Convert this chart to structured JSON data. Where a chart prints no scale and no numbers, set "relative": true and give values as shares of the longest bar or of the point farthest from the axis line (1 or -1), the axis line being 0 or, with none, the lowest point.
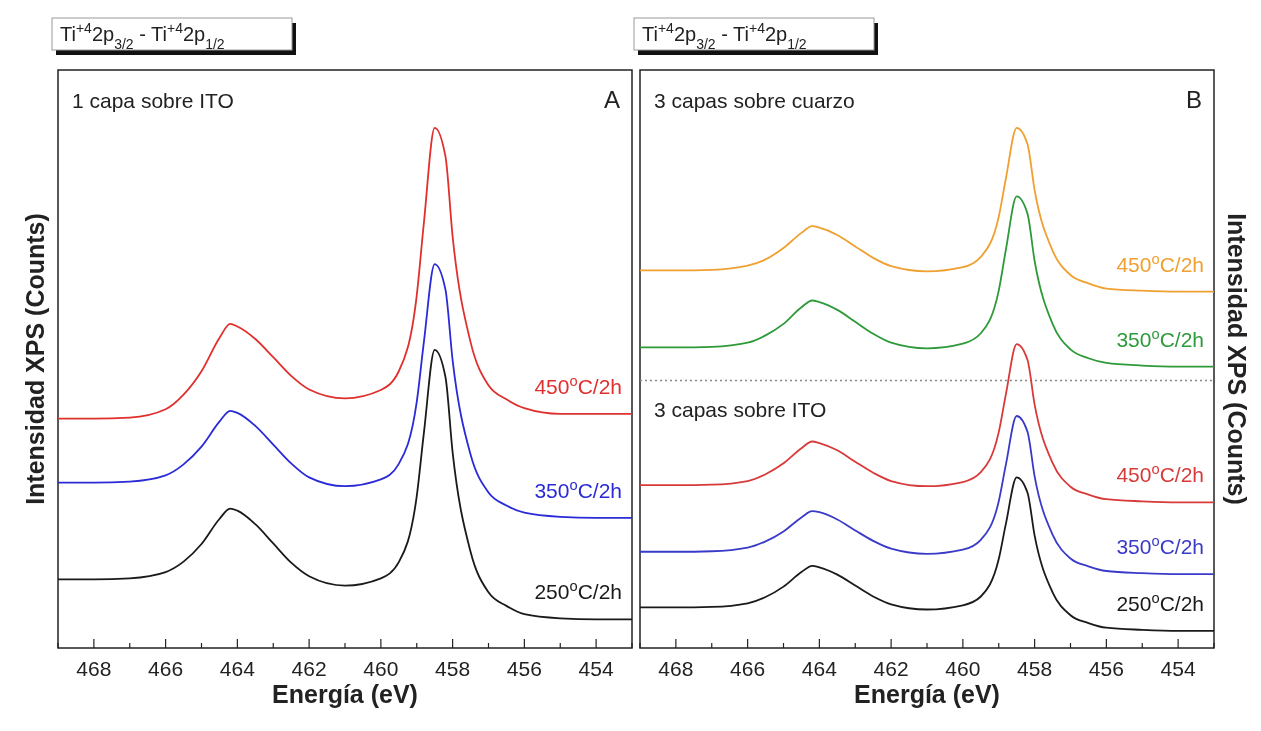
{
  "chart_data": [
    {
      "type": "line",
      "title": "Ti$^{+4}$2p$_{3/2}$ - Ti$^{+4}$2p$_{1/2}$",
      "xlabel": "Energía (eV)",
      "ylabel": "Intensidad XPS (Counts)",
      "relative": true,
      "x": [
        469,
        468,
        467,
        466,
        465.5,
        465,
        464.5,
        464.2,
        464,
        463.5,
        463,
        462.5,
        462,
        461,
        460,
        459.5,
        459,
        458.8,
        458.5,
        458.2,
        458,
        457.5,
        457,
        456.5,
        456,
        455,
        454,
        453
      ],
      "xlim": [
        469,
        453
      ],
      "xticks": [
        {
          "value": 469,
          "label": null
        },
        468,
        {
          "value": 467,
          "label": null
        },
        466,
        {
          "value": 465,
          "label": null
        },
        464,
        {
          "value": 463,
          "label": null
        },
        462,
        {
          "value": 461,
          "label": null
        },
        460,
        {
          "value": 459,
          "label": null
        },
        458,
        {
          "value": 457,
          "label": null
        },
        456,
        {
          "value": 455,
          "label": null
        },
        454,
        {
          "value": 453,
          "label": null
        }
      ],
      "annotations": [
        "1 capa sobre ITO",
        "A"
      ],
      "series": [
        {
          "name": "450$^{o}$C/2h",
          "color": "#e0302e",
          "values": [
            0.441,
            0.441,
            0.443,
            0.459,
            0.487,
            0.532,
            0.596,
            0.623,
            0.618,
            0.594,
            0.559,
            0.523,
            0.497,
            0.48,
            0.496,
            0.532,
            0.678,
            0.818,
            1,
            0.945,
            0.791,
            0.588,
            0.505,
            0.478,
            0.461,
            0.45,
            0.45,
            0.45
          ]
        },
        {
          "name": "350$^{o}$C/2h",
          "color": "#2a2ad8",
          "values": [
            0.318,
            0.318,
            0.32,
            0.332,
            0.353,
            0.387,
            0.435,
            0.456,
            0.452,
            0.427,
            0.391,
            0.355,
            0.328,
            0.311,
            0.324,
            0.354,
            0.473,
            0.589,
            0.738,
            0.689,
            0.553,
            0.372,
            0.299,
            0.274,
            0.26,
            0.252,
            0.25,
            0.25
          ]
        },
        {
          "name": "250$^{o}$C/2h",
          "color": "#1a1a1a",
          "values": [
            0.132,
            0.132,
            0.134,
            0.146,
            0.166,
            0.2,
            0.248,
            0.268,
            0.264,
            0.238,
            0.201,
            0.164,
            0.138,
            0.12,
            0.134,
            0.165,
            0.292,
            0.414,
            0.573,
            0.521,
            0.376,
            0.185,
            0.107,
            0.081,
            0.065,
            0.057,
            0.055,
            0.055
          ]
        }
      ]
    },
    {
      "type": "line",
      "title": "Ti$^{+4}$2p$_{3/2}$ - Ti$^{+4}$2p$_{1/2}$",
      "xlabel": "Energía (eV)",
      "ylabel": "Intensidad XPS (Counts)",
      "relative": true,
      "x": [
        469,
        468,
        467,
        466,
        465.5,
        465,
        464.5,
        464.2,
        464,
        463.5,
        463,
        462.5,
        462,
        461,
        460,
        459.5,
        459,
        458.8,
        458.5,
        458.2,
        458,
        457.5,
        457,
        456.5,
        456,
        455,
        454,
        453
      ],
      "xlim": [
        469,
        453
      ],
      "xticks": [
        {
          "value": 469,
          "label": null
        },
        468,
        {
          "value": 467,
          "label": null
        },
        466,
        {
          "value": 465,
          "label": null
        },
        464,
        {
          "value": 463,
          "label": null
        },
        462,
        {
          "value": 461,
          "label": null
        },
        460,
        {
          "value": 459,
          "label": null
        },
        458,
        {
          "value": 457,
          "label": null
        },
        456,
        {
          "value": 455,
          "label": null
        },
        454,
        {
          "value": 453,
          "label": null
        }
      ],
      "annotations": [
        "3 capas sobre cuarzo",
        "B",
        "3 capas sobre ITO"
      ],
      "ref_lines": [
        {
          "axis": "y",
          "value": 0.514,
          "color": "#888888",
          "line_style": "dotted"
        }
      ],
      "series": [
        {
          "name": "450$^{o}$C/2h",
          "color": "#f0a030",
          "values": [
            0.726,
            0.726,
            0.727,
            0.735,
            0.747,
            0.769,
            0.798,
            0.811,
            0.808,
            0.794,
            0.772,
            0.75,
            0.734,
            0.724,
            0.732,
            0.752,
            0.829,
            0.903,
            1,
            0.969,
            0.88,
            0.764,
            0.717,
            0.701,
            0.691,
            0.687,
            0.685,
            0.685
          ]
        },
        {
          "name": "350$^{o}$C/2h",
          "color": "#2e9a3a",
          "values": [
            0.578,
            0.578,
            0.579,
            0.587,
            0.601,
            0.623,
            0.655,
            0.668,
            0.665,
            0.65,
            0.627,
            0.604,
            0.587,
            0.576,
            0.585,
            0.605,
            0.687,
            0.766,
            0.868,
            0.835,
            0.744,
            0.623,
            0.574,
            0.557,
            0.548,
            0.543,
            0.541,
            0.541
          ]
        },
        {
          "name": "450$^{o}$C/2h",
          "color": "#d83a3a",
          "values": [
            0.313,
            0.313,
            0.314,
            0.321,
            0.334,
            0.355,
            0.384,
            0.397,
            0.394,
            0.38,
            0.358,
            0.337,
            0.321,
            0.311,
            0.319,
            0.338,
            0.415,
            0.488,
            0.584,
            0.554,
            0.468,
            0.356,
            0.31,
            0.295,
            0.286,
            0.282,
            0.28,
            0.28
          ]
        },
        {
          "name": "350$^{o}$C/2h",
          "color": "#3a3ac8",
          "values": [
            0.185,
            0.185,
            0.186,
            0.193,
            0.205,
            0.224,
            0.251,
            0.263,
            0.261,
            0.247,
            0.226,
            0.206,
            0.191,
            0.181,
            0.189,
            0.208,
            0.282,
            0.353,
            0.446,
            0.416,
            0.33,
            0.218,
            0.172,
            0.157,
            0.148,
            0.144,
            0.142,
            0.142
          ]
        },
        {
          "name": "250$^{o}$C/2h",
          "color": "#1a1a1a",
          "values": [
            0.078,
            0.078,
            0.079,
            0.086,
            0.098,
            0.118,
            0.146,
            0.158,
            0.155,
            0.141,
            0.12,
            0.099,
            0.084,
            0.074,
            0.082,
            0.099,
            0.171,
            0.239,
            0.328,
            0.299,
            0.216,
            0.107,
            0.063,
            0.048,
            0.039,
            0.035,
            0.033,
            0.033
          ]
        }
      ]
    }
  ]
}
